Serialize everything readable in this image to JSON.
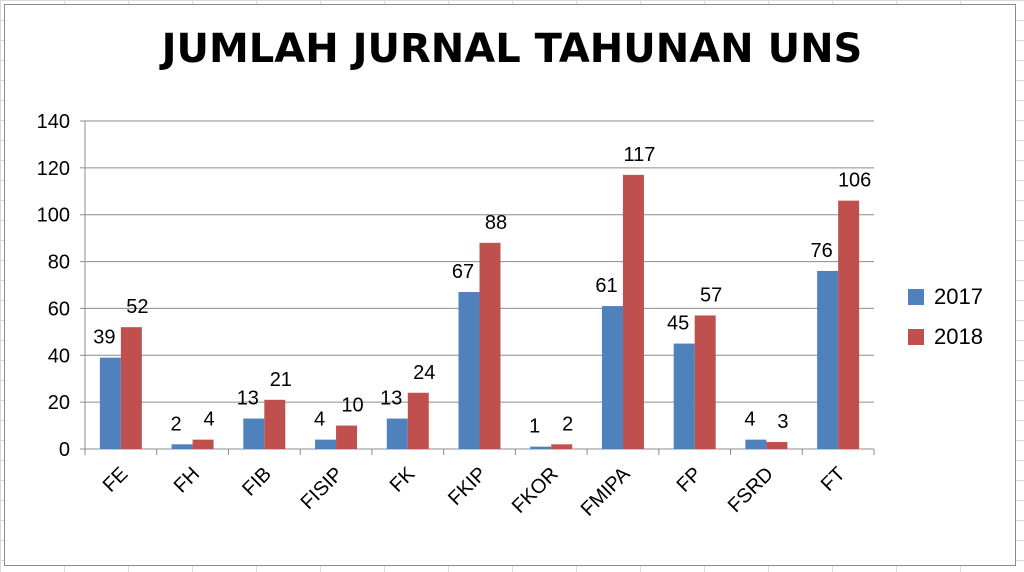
{
  "chart_data": {
    "type": "bar",
    "title": "JUMLAH JURNAL TAHUNAN UNS",
    "categories": [
      "FE",
      "FH",
      "FIB",
      "FISIP",
      "FK",
      "FKIP",
      "FKOR",
      "FMIPA",
      "FP",
      "FSRD",
      "FT"
    ],
    "series": [
      {
        "name": "2017",
        "color": "#4f81bd",
        "values": [
          39,
          2,
          13,
          4,
          13,
          67,
          1,
          61,
          45,
          4,
          76
        ]
      },
      {
        "name": "2018",
        "color": "#c0504d",
        "values": [
          52,
          4,
          21,
          10,
          24,
          88,
          2,
          117,
          57,
          3,
          106
        ]
      }
    ],
    "ylim": [
      0,
      140
    ],
    "yticks": [
      0,
      20,
      40,
      60,
      80,
      100,
      120,
      140
    ],
    "grid": true,
    "data_labels": true,
    "legend_position": "right"
  }
}
